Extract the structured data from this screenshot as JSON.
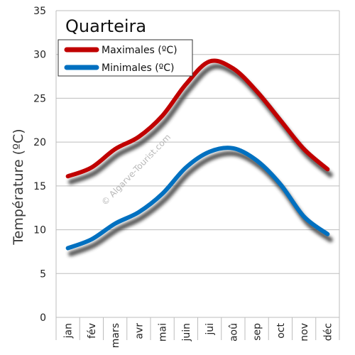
{
  "chart_data": {
    "type": "line",
    "title": "Quarteira",
    "ylabel": "Température (ºC)",
    "xlabel": "",
    "categories": [
      "jan",
      "fév",
      "mars",
      "avr",
      "mai",
      "juin",
      "jui",
      "aoû",
      "sep",
      "oct",
      "nov",
      "déc"
    ],
    "ylim": [
      0,
      35
    ],
    "yticks": [
      0,
      5,
      10,
      15,
      20,
      25,
      30,
      35
    ],
    "grid": true,
    "legend_position": "top-left",
    "series": [
      {
        "name": "Maximales (ºC)",
        "color": "#c00000",
        "values": [
          16.1,
          17.1,
          19.2,
          20.6,
          23.0,
          26.6,
          29.2,
          28.4,
          25.8,
          22.5,
          19.2,
          16.9
        ]
      },
      {
        "name": "Minimales (ºC)",
        "color": "#0070c0",
        "values": [
          7.9,
          8.9,
          10.7,
          12.0,
          14.1,
          17.1,
          18.9,
          19.3,
          17.9,
          15.2,
          11.5,
          9.5
        ]
      }
    ],
    "watermark": "© Algarve-Tourist.com"
  }
}
